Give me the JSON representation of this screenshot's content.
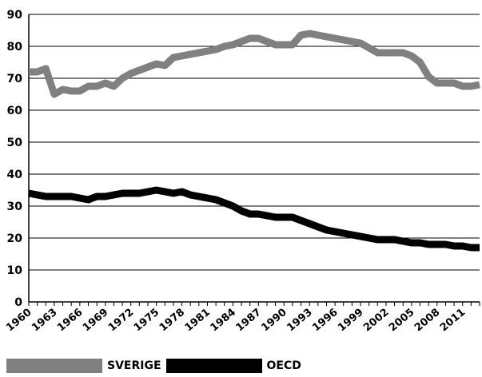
{
  "chart_data": {
    "type": "line",
    "title": "",
    "xlabel": "",
    "ylabel": "",
    "ylim": [
      0,
      90
    ],
    "yticks": [
      "0",
      "10",
      "20",
      "30",
      "40",
      "50",
      "60",
      "70",
      "80",
      "90"
    ],
    "xlim": [
      1960,
      2013
    ],
    "xticks": [
      "1960",
      "1963",
      "1966",
      "1969",
      "1972",
      "1975",
      "1978",
      "1981",
      "1984",
      "1987",
      "1990",
      "1993",
      "1996",
      "1999",
      "2002",
      "2005",
      "2008",
      "2011"
    ],
    "grid": "horizontal",
    "legend": "bottom",
    "x": [
      1960,
      1961,
      1962,
      1963,
      1964,
      1965,
      1966,
      1967,
      1968,
      1969,
      1970,
      1971,
      1972,
      1973,
      1974,
      1975,
      1976,
      1977,
      1978,
      1979,
      1980,
      1981,
      1982,
      1983,
      1984,
      1985,
      1986,
      1987,
      1988,
      1989,
      1990,
      1991,
      1992,
      1993,
      1994,
      1995,
      1996,
      1997,
      1998,
      1999,
      2000,
      2001,
      2002,
      2003,
      2004,
      2005,
      2006,
      2007,
      2008,
      2009,
      2010,
      2011,
      2012,
      2013
    ],
    "series": [
      {
        "name": "SVERIGE",
        "color": "#808080",
        "values": [
          72,
          72,
          73,
          65,
          66.5,
          66,
          66,
          67.5,
          67.5,
          68.5,
          67.5,
          70,
          71.5,
          72.5,
          73.5,
          74.5,
          74,
          76.5,
          77,
          77.5,
          78,
          78.5,
          79,
          80,
          80.5,
          81.5,
          82.5,
          82.5,
          81.5,
          80.5,
          80.5,
          80.5,
          83.5,
          84,
          83.5,
          83,
          82.5,
          82,
          81.5,
          81,
          79.5,
          78,
          78,
          78,
          78,
          77,
          75,
          70.5,
          68.5,
          68.5,
          68.5,
          67.5,
          67.5,
          68
        ]
      },
      {
        "name": "OECD",
        "color": "#000000",
        "values": [
          34,
          33.5,
          33,
          33,
          33,
          33,
          32.5,
          32,
          33,
          33,
          33.5,
          34,
          34,
          34,
          34.5,
          35,
          34.5,
          34,
          34.5,
          33.5,
          33,
          32.5,
          32,
          31,
          30,
          28.5,
          27.5,
          27.5,
          27,
          26.5,
          26.5,
          26.5,
          25.5,
          24.5,
          23.5,
          22.5,
          22,
          21.5,
          21,
          20.5,
          20,
          19.5,
          19.5,
          19.5,
          19,
          18.5,
          18.5,
          18,
          18,
          18,
          17.5,
          17.5,
          17,
          17
        ]
      }
    ]
  }
}
